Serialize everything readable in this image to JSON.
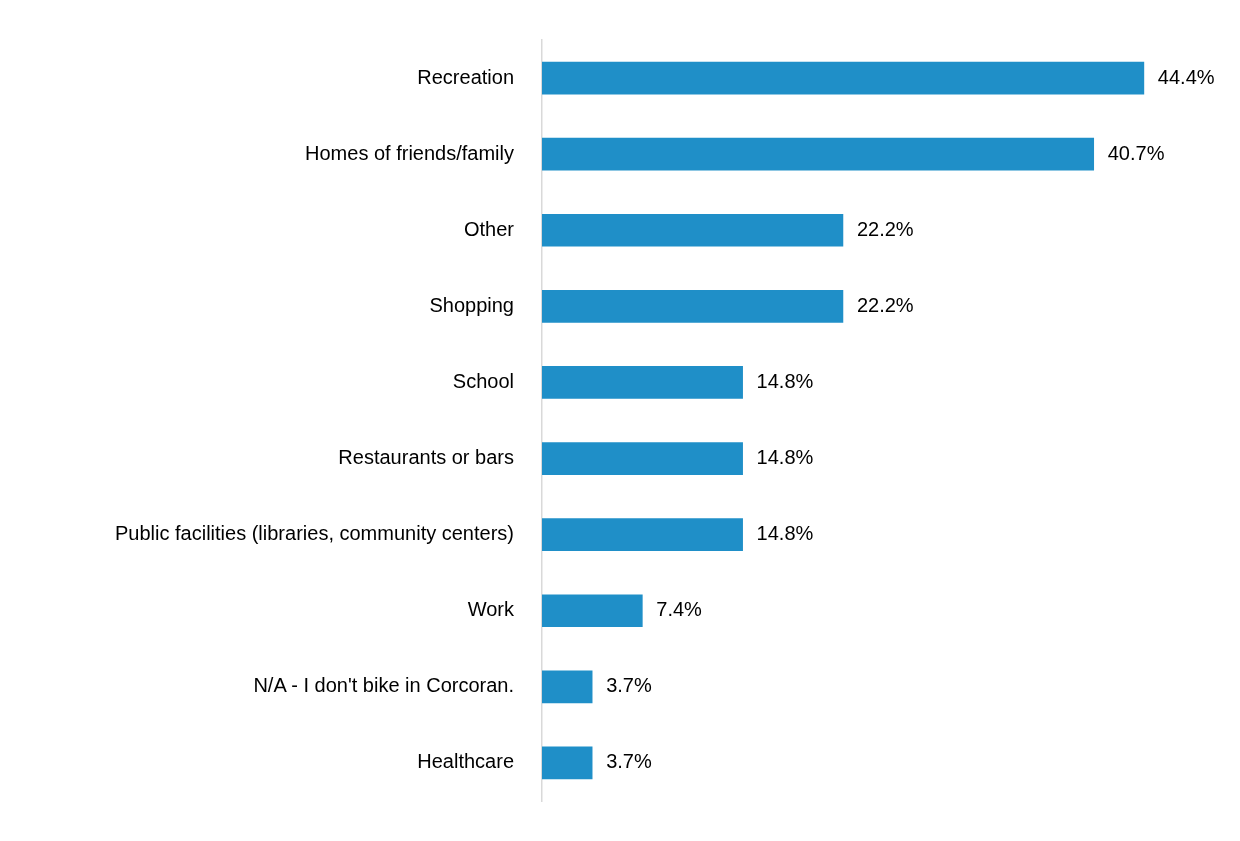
{
  "chart_data": {
    "type": "bar",
    "orientation": "horizontal",
    "categories": [
      "Recreation",
      "Homes of friends/family",
      "Other",
      "Shopping",
      "School",
      "Restaurants or bars",
      "Public facilities (libraries, community centers)",
      "Work",
      "N/A - I don't bike in Corcoran.",
      "Healthcare"
    ],
    "values": [
      44.4,
      40.7,
      22.2,
      22.2,
      14.8,
      14.8,
      14.8,
      7.4,
      3.7,
      3.7
    ],
    "value_labels": [
      "44.4%",
      "40.7%",
      "22.2%",
      "22.2%",
      "14.8%",
      "14.8%",
      "14.8%",
      "7.4%",
      "3.7%",
      "3.7%"
    ],
    "color": "#1f8fc8",
    "tick_labels": "y"
  }
}
